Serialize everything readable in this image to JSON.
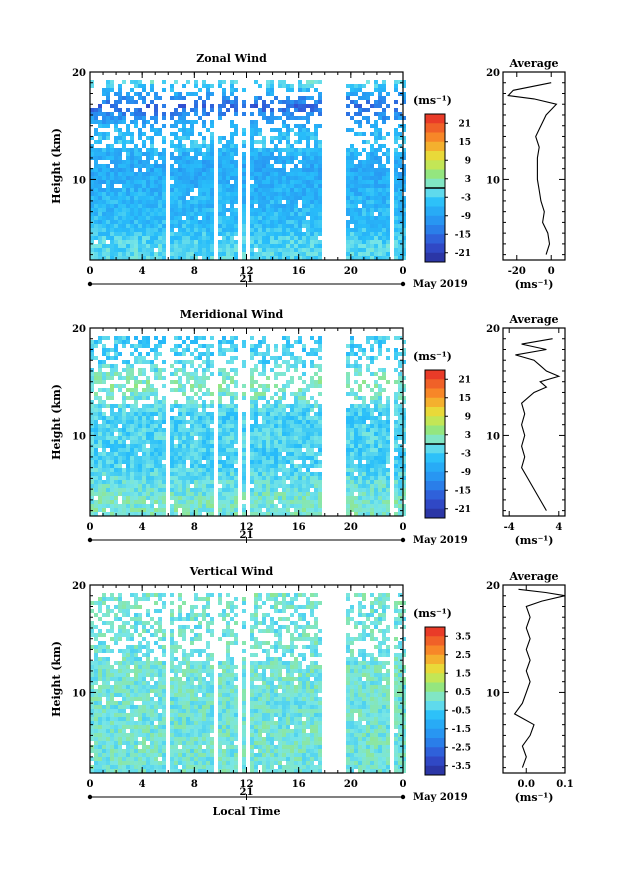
{
  "chart_data": [
    {
      "type": "heatmap",
      "title": "Zonal Wind",
      "ylabel": "Height (km)",
      "xlabel": "",
      "xlim": [
        0,
        24
      ],
      "ylim": [
        2.5,
        20
      ],
      "x_ticks": [
        "0",
        "4",
        "8",
        "12",
        "16",
        "20",
        "0"
      ],
      "y_ticks": [
        "20",
        "10"
      ],
      "date_center": "21",
      "date_label": "May 2019",
      "colorbar": {
        "unit": "(ms⁻¹)",
        "ticks": [
          "21",
          "15",
          "9",
          "3",
          "-3",
          "-9",
          "-15",
          "-21"
        ],
        "range": [
          -24,
          24
        ],
        "zero_line": true
      },
      "profile_rows": [
        {
          "h": 19.0,
          "v": -3
        },
        {
          "h": 17.0,
          "v": -16
        },
        {
          "h": 15.0,
          "v": -6
        },
        {
          "h": 13.5,
          "v": -4
        },
        {
          "h": 12.0,
          "v": -8
        },
        {
          "h": 10.0,
          "v": -7
        },
        {
          "h": 8.0,
          "v": -6
        },
        {
          "h": 6.0,
          "v": -5
        },
        {
          "h": 4.0,
          "v": -2
        }
      ],
      "data_gaps": [
        [
          5.7,
          6.0
        ],
        [
          9.4,
          9.7
        ],
        [
          11.1,
          11.4
        ],
        [
          11.8,
          12.1
        ],
        [
          17.7,
          19.4
        ],
        [
          22.8,
          23.1
        ]
      ],
      "average_profile": {
        "title": "Average",
        "xticks": [
          "-20",
          "0"
        ],
        "xlim": [
          -28,
          8
        ],
        "xlabel": "(ms⁻¹)",
        "y_ticks": [
          "20",
          "10"
        ],
        "points": [
          {
            "h": 19.0,
            "v": 0
          },
          {
            "h": 18.3,
            "v": -22
          },
          {
            "h": 17.8,
            "v": -25
          },
          {
            "h": 17.5,
            "v": -10
          },
          {
            "h": 17.0,
            "v": 3
          },
          {
            "h": 16.0,
            "v": -3
          },
          {
            "h": 15.0,
            "v": -6
          },
          {
            "h": 14.0,
            "v": -9
          },
          {
            "h": 13.0,
            "v": -7
          },
          {
            "h": 12.0,
            "v": -8
          },
          {
            "h": 11.0,
            "v": -8
          },
          {
            "h": 10.0,
            "v": -8
          },
          {
            "h": 9.0,
            "v": -7
          },
          {
            "h": 8.0,
            "v": -6
          },
          {
            "h": 7.0,
            "v": -4
          },
          {
            "h": 6.0,
            "v": -5
          },
          {
            "h": 5.0,
            "v": -2
          },
          {
            "h": 4.0,
            "v": -1
          },
          {
            "h": 3.0,
            "v": -3
          }
        ]
      }
    },
    {
      "type": "heatmap",
      "title": "Meridional Wind",
      "ylabel": "Height (km)",
      "xlabel": "",
      "xlim": [
        0,
        24
      ],
      "ylim": [
        2.5,
        20
      ],
      "x_ticks": [
        "0",
        "4",
        "8",
        "12",
        "16",
        "20",
        "0"
      ],
      "y_ticks": [
        "20",
        "10"
      ],
      "date_center": "21",
      "date_label": "May 2019",
      "colorbar": {
        "unit": "(ms⁻¹)",
        "ticks": [
          "21",
          "15",
          "9",
          "3",
          "-3",
          "-9",
          "-15",
          "-21"
        ],
        "range": [
          -24,
          24
        ],
        "zero_line": true
      },
      "profile_rows": [
        {
          "h": 18.5,
          "v": -3
        },
        {
          "h": 17.0,
          "v": -2
        },
        {
          "h": 15.0,
          "v": 2
        },
        {
          "h": 13.5,
          "v": 0
        },
        {
          "h": 12.0,
          "v": -3
        },
        {
          "h": 10.0,
          "v": -2
        },
        {
          "h": 8.0,
          "v": -3
        },
        {
          "h": 6.0,
          "v": -1
        },
        {
          "h": 4.0,
          "v": 1
        }
      ],
      "data_gaps": [
        [
          5.7,
          6.0
        ],
        [
          9.4,
          9.7
        ],
        [
          11.1,
          11.4
        ],
        [
          11.8,
          12.1
        ],
        [
          17.7,
          19.4
        ],
        [
          22.8,
          23.1
        ]
      ],
      "average_profile": {
        "title": "Average",
        "xticks": [
          "-4",
          "4"
        ],
        "xlim": [
          -5,
          5
        ],
        "xlabel": "(ms⁻¹)",
        "y_ticks": [
          "20",
          "10"
        ],
        "points": [
          {
            "h": 19.0,
            "v": 3
          },
          {
            "h": 18.5,
            "v": -2
          },
          {
            "h": 18.0,
            "v": 2
          },
          {
            "h": 17.5,
            "v": -3
          },
          {
            "h": 17.0,
            "v": 0
          },
          {
            "h": 16.5,
            "v": 1
          },
          {
            "h": 16.0,
            "v": 2
          },
          {
            "h": 15.5,
            "v": 4
          },
          {
            "h": 15.0,
            "v": 1
          },
          {
            "h": 14.5,
            "v": 2
          },
          {
            "h": 14.0,
            "v": 0
          },
          {
            "h": 13.0,
            "v": -2
          },
          {
            "h": 12.0,
            "v": -1.5
          },
          {
            "h": 11.0,
            "v": -2
          },
          {
            "h": 10.0,
            "v": -1.5
          },
          {
            "h": 9.0,
            "v": -2
          },
          {
            "h": 8.0,
            "v": -1.5
          },
          {
            "h": 7.0,
            "v": -2
          },
          {
            "h": 6.0,
            "v": -1
          },
          {
            "h": 5.0,
            "v": 0
          },
          {
            "h": 4.0,
            "v": 1
          },
          {
            "h": 3.0,
            "v": 2
          }
        ]
      }
    },
    {
      "type": "heatmap",
      "title": "Vertical Wind",
      "ylabel": "Height (km)",
      "xlabel": "Local Time",
      "xlim": [
        0,
        24
      ],
      "ylim": [
        2.5,
        20
      ],
      "x_ticks": [
        "0",
        "4",
        "8",
        "12",
        "16",
        "20",
        "0"
      ],
      "y_ticks": [
        "20",
        "10"
      ],
      "date_center": "21",
      "date_label": "May 2019",
      "colorbar": {
        "unit": "(ms⁻¹)",
        "ticks": [
          "3.5",
          "2.5",
          "1.5",
          "0.5",
          "-0.5",
          "-1.5",
          "-2.5",
          "-3.5"
        ],
        "range": [
          -4,
          4
        ],
        "zero_line": false
      },
      "profile_rows": [
        {
          "h": 18.5,
          "v": 0.1
        },
        {
          "h": 17.0,
          "v": 0.0
        },
        {
          "h": 15.0,
          "v": 0.05
        },
        {
          "h": 13.5,
          "v": 0.0
        },
        {
          "h": 12.0,
          "v": 0.1
        },
        {
          "h": 10.0,
          "v": 0.05
        },
        {
          "h": 8.0,
          "v": 0.0
        },
        {
          "h": 6.0,
          "v": 0.1
        },
        {
          "h": 4.0,
          "v": 0.05
        }
      ],
      "data_gaps": [
        [
          5.7,
          6.0
        ],
        [
          9.4,
          9.7
        ],
        [
          11.1,
          11.4
        ],
        [
          11.8,
          12.1
        ],
        [
          17.7,
          19.4
        ],
        [
          22.8,
          23.1
        ]
      ],
      "average_profile": {
        "title": "Average",
        "xticks": [
          "0.0",
          "0.1"
        ],
        "xlim": [
          -0.06,
          0.1
        ],
        "xlabel": "(ms⁻¹)",
        "y_ticks": [
          "20",
          "10"
        ],
        "points": [
          {
            "h": 19.6,
            "v": -0.02
          },
          {
            "h": 19.3,
            "v": 0.05
          },
          {
            "h": 19.0,
            "v": 0.1
          },
          {
            "h": 18.5,
            "v": 0.04
          },
          {
            "h": 18.0,
            "v": 0.0
          },
          {
            "h": 17.0,
            "v": 0.01
          },
          {
            "h": 16.0,
            "v": 0.0
          },
          {
            "h": 15.0,
            "v": 0.01
          },
          {
            "h": 14.0,
            "v": 0.0
          },
          {
            "h": 13.0,
            "v": 0.01
          },
          {
            "h": 12.0,
            "v": 0.0
          },
          {
            "h": 11.0,
            "v": 0.01
          },
          {
            "h": 10.0,
            "v": 0.0
          },
          {
            "h": 9.0,
            "v": -0.01
          },
          {
            "h": 8.0,
            "v": -0.03
          },
          {
            "h": 7.0,
            "v": 0.02
          },
          {
            "h": 6.0,
            "v": 0.01
          },
          {
            "h": 5.0,
            "v": -0.01
          },
          {
            "h": 4.0,
            "v": 0.0
          },
          {
            "h": 3.0,
            "v": -0.01
          }
        ]
      }
    }
  ]
}
